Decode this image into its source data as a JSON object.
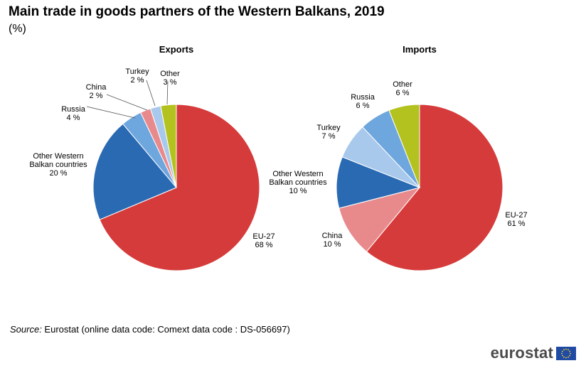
{
  "header": {
    "title": "Main trade in goods partners of the Western Balkans, 2019",
    "subtitle": "(%)"
  },
  "footer": {
    "source_label": "Source:",
    "source_text": " Eurostat (online data code: Comext data code : DS-056697)",
    "logo_text": "eurostat"
  },
  "colors": {
    "eu27": "#d63b3b",
    "china": "#e88a8c",
    "other_wb": "#2a6ab3",
    "turkey": "#a9c9ec",
    "russia": "#6ea6de",
    "other": "#b4c21f"
  },
  "chart_data": [
    {
      "type": "pie",
      "title": "Exports",
      "slices": [
        {
          "name": "EU-27",
          "value": 68,
          "value_label": "68 %",
          "color": "#d63b3b"
        },
        {
          "name": "Other Western Balkan countries",
          "label_lines": [
            "Other Western",
            "Balkan countries"
          ],
          "value": 20,
          "value_label": "20 %",
          "color": "#2a6ab3"
        },
        {
          "name": "Russia",
          "value": 4,
          "value_label": "4 %",
          "color": "#6ea6de"
        },
        {
          "name": "China",
          "value": 2,
          "value_label": "2 %",
          "color": "#e88a8c"
        },
        {
          "name": "Turkey",
          "value": 2,
          "value_label": "2 %",
          "color": "#a9c9ec"
        },
        {
          "name": "Other",
          "value": 3,
          "value_label": "3 %",
          "color": "#b4c21f"
        }
      ]
    },
    {
      "type": "pie",
      "title": "Imports",
      "slices": [
        {
          "name": "EU-27",
          "value": 61,
          "value_label": "61 %",
          "color": "#d63b3b"
        },
        {
          "name": "China",
          "value": 10,
          "value_label": "10 %",
          "color": "#e88a8c"
        },
        {
          "name": "Other Western Balkan countries",
          "label_lines": [
            "Other Western",
            "Balkan countries"
          ],
          "value": 10,
          "value_label": "10 %",
          "color": "#2a6ab3"
        },
        {
          "name": "Turkey",
          "value": 7,
          "value_label": "7 %",
          "color": "#a9c9ec"
        },
        {
          "name": "Russia",
          "value": 6,
          "value_label": "6 %",
          "color": "#6ea6de"
        },
        {
          "name": "Other",
          "value": 6,
          "value_label": "6 %",
          "color": "#b4c21f"
        }
      ]
    }
  ]
}
